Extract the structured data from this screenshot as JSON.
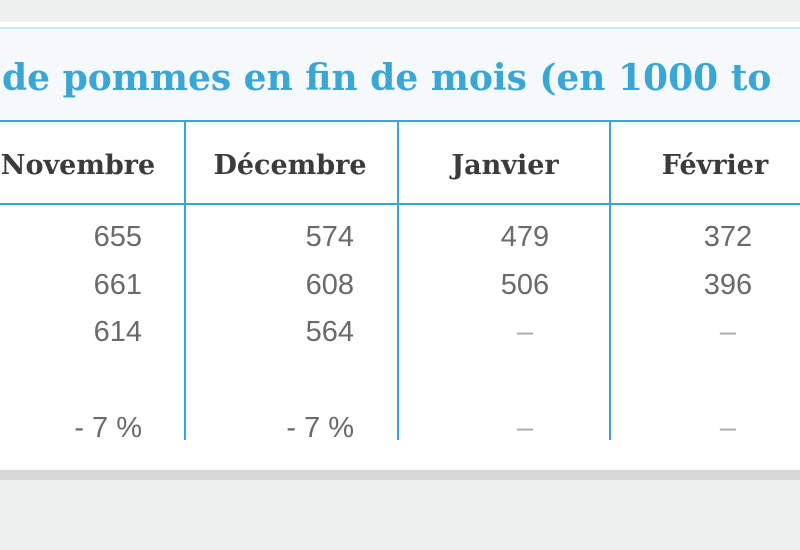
{
  "table": {
    "title": "de pommes en fin de mois (en 1000 to",
    "header": [
      "Novembre",
      "Décembre",
      "Janvier",
      "Février"
    ],
    "rows": [
      [
        "655",
        "574",
        "479",
        "372"
      ],
      [
        "661",
        "608",
        "506",
        "396"
      ],
      [
        "614",
        "564",
        "–",
        "–"
      ],
      [
        "- 7 %",
        "- 7 %",
        "–",
        "–"
      ]
    ]
  }
}
